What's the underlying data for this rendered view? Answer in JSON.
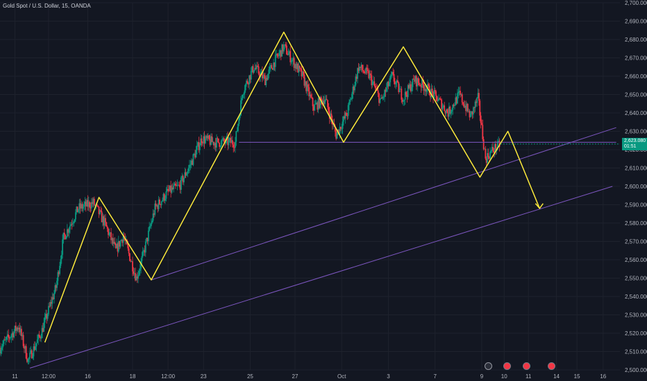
{
  "header": {
    "symbol_label": "Gold Spot / U.S. Dollar, 15, OANDA"
  },
  "price_badge": {
    "price": "2,623.080",
    "countdown": "01:51",
    "color": "#089981"
  },
  "colors": {
    "background": "#131722",
    "grid": "#1e222d",
    "up": "#089981",
    "down": "#f23645",
    "zigzag": "#ffeb3b",
    "trendline": "#7e57c2"
  },
  "icons": [
    "lightning-icon",
    "news-flag-icon",
    "news-flag-icon",
    "news-flag-icon"
  ],
  "chart_data": {
    "type": "candlestick",
    "x_ticks": [
      "11",
      "12:00",
      "16",
      "18",
      "12:00",
      "23",
      "25",
      "27",
      "Oct",
      "3",
      "7",
      "9",
      "10",
      "11",
      "14",
      "15",
      "16"
    ],
    "y_ticks": [
      "2,500.000",
      "2,510.000",
      "2,520.000",
      "2,530.000",
      "2,540.000",
      "2,550.000",
      "2,560.000",
      "2,570.000",
      "2,580.000",
      "2,590.000",
      "2,600.000",
      "2,610.000",
      "2,620.000",
      "2,630.000",
      "2,640.000",
      "2,650.000",
      "2,660.000",
      "2,670.000",
      "2,680.000",
      "2,690.000",
      "2,700.000"
    ],
    "ylim": [
      2500,
      2700
    ],
    "last_price": 2623.08,
    "price_path": [
      {
        "t": 0.0,
        "p": 2512
      },
      {
        "t": 1.0,
        "p": 2524
      },
      {
        "t": 1.5,
        "p": 2505
      },
      {
        "t": 2.2,
        "p": 2520
      },
      {
        "t": 3.0,
        "p": 2545
      },
      {
        "t": 3.4,
        "p": 2572
      },
      {
        "t": 4.2,
        "p": 2588
      },
      {
        "t": 5.0,
        "p": 2591
      },
      {
        "t": 5.6,
        "p": 2580
      },
      {
        "t": 6.2,
        "p": 2565
      },
      {
        "t": 6.6,
        "p": 2573
      },
      {
        "t": 7.0,
        "p": 2560
      },
      {
        "t": 7.3,
        "p": 2550
      },
      {
        "t": 7.6,
        "p": 2560
      },
      {
        "t": 8.3,
        "p": 2588
      },
      {
        "t": 9.0,
        "p": 2597
      },
      {
        "t": 9.6,
        "p": 2600
      },
      {
        "t": 10.2,
        "p": 2612
      },
      {
        "t": 10.8,
        "p": 2626
      },
      {
        "t": 11.4,
        "p": 2624
      },
      {
        "t": 12.0,
        "p": 2624
      },
      {
        "t": 12.6,
        "p": 2624
      },
      {
        "t": 13.0,
        "p": 2652
      },
      {
        "t": 13.6,
        "p": 2665
      },
      {
        "t": 14.2,
        "p": 2658
      },
      {
        "t": 14.7,
        "p": 2668
      },
      {
        "t": 15.2,
        "p": 2676
      },
      {
        "t": 15.7,
        "p": 2668
      },
      {
        "t": 16.2,
        "p": 2660
      },
      {
        "t": 16.8,
        "p": 2643
      },
      {
        "t": 17.4,
        "p": 2648
      },
      {
        "t": 18.0,
        "p": 2628
      },
      {
        "t": 18.6,
        "p": 2640
      },
      {
        "t": 19.2,
        "p": 2665
      },
      {
        "t": 19.8,
        "p": 2660
      },
      {
        "t": 20.4,
        "p": 2646
      },
      {
        "t": 21.0,
        "p": 2660
      },
      {
        "t": 21.6,
        "p": 2648
      },
      {
        "t": 22.2,
        "p": 2658
      },
      {
        "t": 22.8,
        "p": 2654
      },
      {
        "t": 23.4,
        "p": 2648
      },
      {
        "t": 24.0,
        "p": 2640
      },
      {
        "t": 24.6,
        "p": 2650
      },
      {
        "t": 25.2,
        "p": 2638
      },
      {
        "t": 25.6,
        "p": 2648
      },
      {
        "t": 26.0,
        "p": 2615
      },
      {
        "t": 26.4,
        "p": 2620
      },
      {
        "t": 26.8,
        "p": 2623
      }
    ],
    "zigzag_path": [
      {
        "t": 2.4,
        "p": 2515
      },
      {
        "t": 5.3,
        "p": 2594
      },
      {
        "t": 8.1,
        "p": 2549
      },
      {
        "t": 15.2,
        "p": 2684
      },
      {
        "t": 18.4,
        "p": 2624
      },
      {
        "t": 21.6,
        "p": 2676
      },
      {
        "t": 25.7,
        "p": 2605
      },
      {
        "t": 27.2,
        "p": 2630
      },
      {
        "t": 28.9,
        "p": 2588
      }
    ],
    "trendlines": [
      {
        "from": {
          "t": 1.6,
          "p": 2501
        },
        "to": {
          "t": 32.8,
          "p": 2600
        }
      },
      {
        "from": {
          "t": 8.1,
          "p": 2549
        },
        "to": {
          "t": 33.0,
          "p": 2632
        }
      },
      {
        "from": {
          "t": 12.8,
          "p": 2624
        },
        "to": {
          "t": 33.0,
          "p": 2624
        }
      }
    ],
    "t_max": 33.2
  }
}
